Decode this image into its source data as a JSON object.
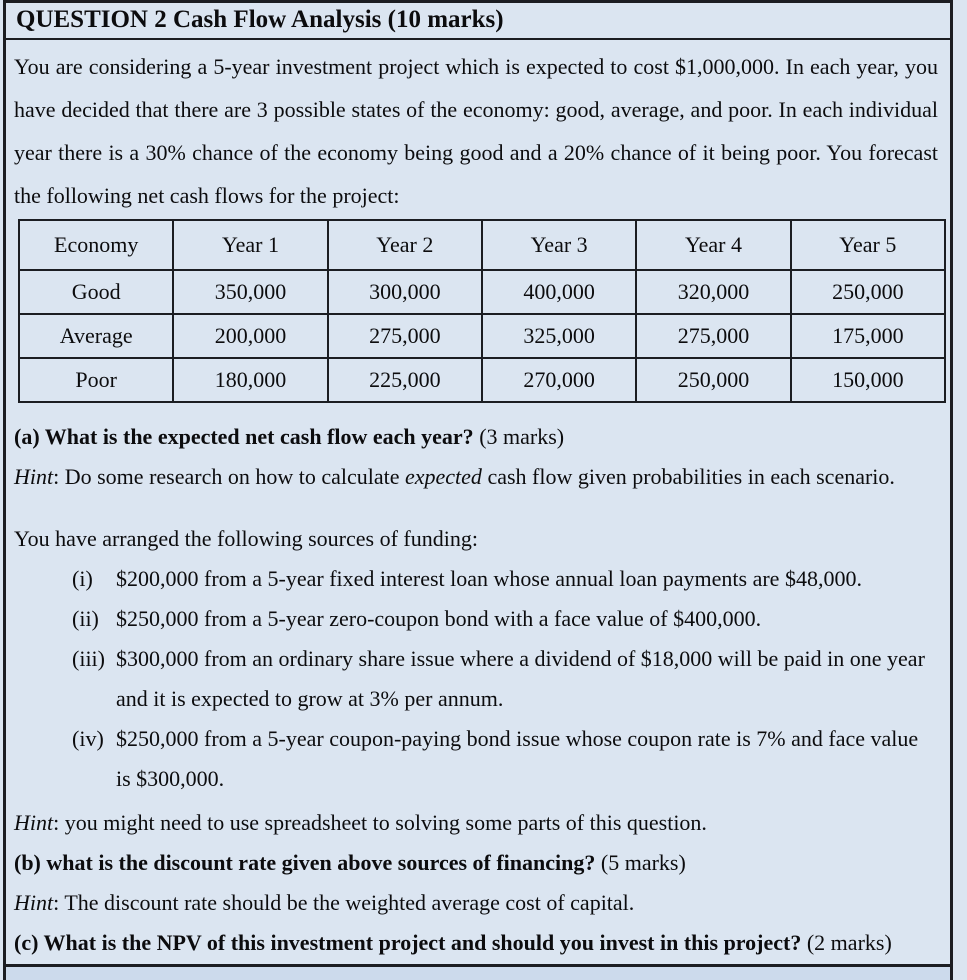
{
  "title": "QUESTION 2 Cash Flow Analysis (10 marks)",
  "intro": "You are considering a 5-year investment project which is expected to cost $1,000,000. In each year, you have decided that there are 3 possible states of the economy: good, average, and poor. In each individual year there is a 30% chance of the economy being good and a 20% chance of it being poor. You forecast the following net cash flows for the project:",
  "cashflow_table": {
    "headers": [
      "Economy",
      "Year 1",
      "Year 2",
      "Year 3",
      "Year 4",
      "Year 5"
    ],
    "rows": [
      {
        "label": "Good",
        "values": [
          "350,000",
          "300,000",
          "400,000",
          "320,000",
          "250,000"
        ]
      },
      {
        "label": "Average",
        "values": [
          "200,000",
          "275,000",
          "325,000",
          "275,000",
          "175,000"
        ]
      },
      {
        "label": "Poor",
        "values": [
          "180,000",
          "225,000",
          "270,000",
          "250,000",
          "150,000"
        ]
      }
    ]
  },
  "part_a": {
    "question": "(a) What is the expected net cash flow each year?",
    "marks": " (3 marks)"
  },
  "hint_a": {
    "prefix": "Hint",
    "before_italic": ": Do some research on how to calculate ",
    "italic_word": "expected",
    "after_italic": " cash flow given probabilities in each scenario."
  },
  "funding_intro": "You have arranged the following sources of funding:",
  "funding_items": [
    {
      "num": "(i)",
      "text": "$200,000 from a 5-year fixed interest loan whose annual loan payments are $48,000."
    },
    {
      "num": "(ii)",
      "text": "$250,000 from a 5-year zero-coupon bond with a face value of $400,000."
    },
    {
      "num": "(iii)",
      "text": "$300,000 from an ordinary share issue where a dividend of $18,000 will be paid in one year and it is expected to grow at 3% per annum."
    },
    {
      "num": "(iv)",
      "text": "$250,000 from a 5-year coupon-paying bond issue whose coupon rate is 7% and face value is $300,000."
    }
  ],
  "hint_general": {
    "prefix": "Hint",
    "text": ": you might need to use spreadsheet to solving some parts of this question."
  },
  "part_b": {
    "question": "(b) what is the discount rate given above sources of financing?",
    "marks": " (5 marks)"
  },
  "hint_b": {
    "prefix": "Hint",
    "text": ": The discount rate should be the weighted average cost of capital."
  },
  "part_c": {
    "question": "(c)  What is the NPV of this investment project and should you invest in this project?",
    "marks": " (2 marks)"
  },
  "colors": {
    "page_bg": "#dbe5f1",
    "border": "#1b1d22",
    "next_row_bg": "#ccdaec",
    "text": "#0c0c0e"
  }
}
